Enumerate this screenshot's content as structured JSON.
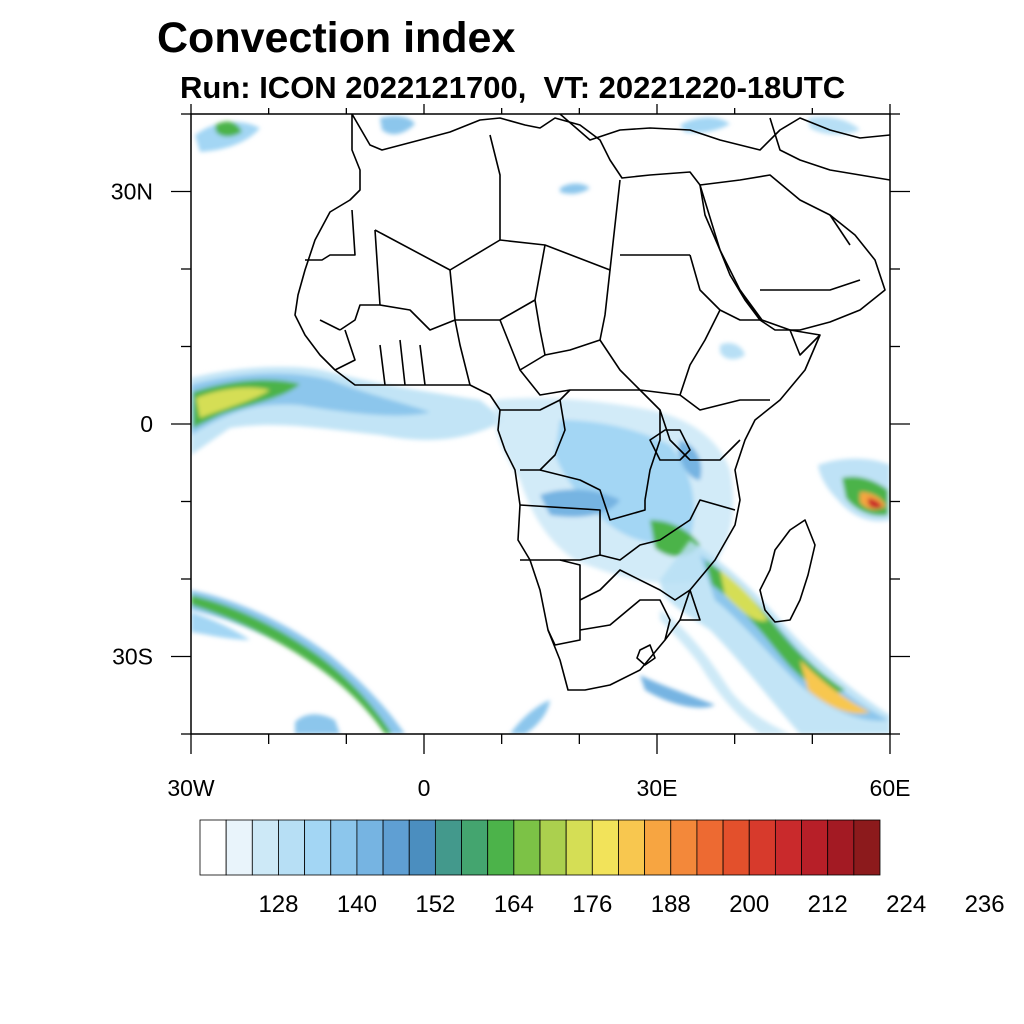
{
  "title": "Convection index",
  "subtitle": "Run: ICON 2022121700,  VT: 20221220-18UTC",
  "map": {
    "lon_range": [
      -30,
      60
    ],
    "lat_range": [
      -40,
      40
    ],
    "y_ticks": [
      {
        "lat": 30,
        "label": "30N"
      },
      {
        "lat": 0,
        "label": "0"
      },
      {
        "lat": -30,
        "label": "30S"
      }
    ],
    "x_ticks": [
      {
        "lon": -30,
        "label": "30W"
      },
      {
        "lon": 0,
        "label": "0"
      },
      {
        "lon": 30,
        "label": "30E"
      },
      {
        "lon": 60,
        "label": "60E"
      }
    ],
    "minor_step_deg": 10,
    "fields": [
      {
        "name": "itcz-atlantic-band",
        "level": 164
      },
      {
        "name": "congo-basin-cluster",
        "level": 152
      },
      {
        "name": "mozambique-channel-band",
        "level": 188
      },
      {
        "name": "south-atlantic-arc",
        "level": 164
      },
      {
        "name": "indian-ocean-cell",
        "level": 224
      }
    ]
  },
  "colorbar": {
    "colors": [
      "#ffffff",
      "#e9f4fb",
      "#cde9f7",
      "#b7dff5",
      "#a3d6f4",
      "#8cc6ec",
      "#76b4e2",
      "#5f9fd3",
      "#4b8ebf",
      "#43998c",
      "#44a56f",
      "#4cb34a",
      "#7cc246",
      "#abd04e",
      "#d5de55",
      "#f2e35a",
      "#f8c74f",
      "#f7a541",
      "#f3883a",
      "#ed6a32",
      "#e3502c",
      "#d73a2c",
      "#c92a2c",
      "#b71f28",
      "#a31a23",
      "#8c1a1c"
    ],
    "labels": [
      "128",
      "140",
      "152",
      "164",
      "176",
      "188",
      "200",
      "212",
      "224",
      "236"
    ]
  }
}
